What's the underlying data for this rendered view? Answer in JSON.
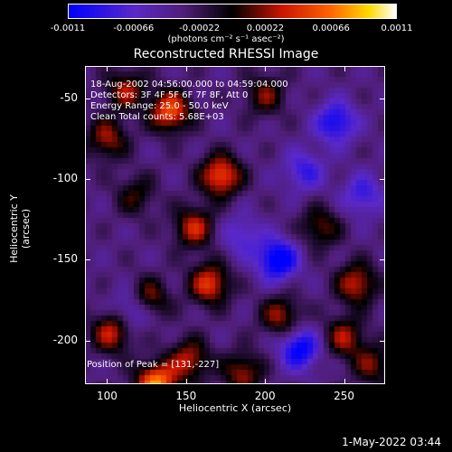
{
  "colorbar": {
    "ticks": [
      "-0.0011",
      "-0.00066",
      "-0.00022",
      "0.00022",
      "0.00066",
      "0.0011"
    ],
    "tick_values": [
      -0.0011,
      -0.00066,
      -0.00022,
      0.00022,
      0.00066,
      0.0011
    ],
    "units": "(photons cm⁻² s⁻¹ asec⁻²)",
    "range": [
      -0.0011,
      0.0011
    ]
  },
  "timestamp": "1-May-2022 03:44",
  "chart_data": {
    "type": "heatmap",
    "title": "Reconstructed RHESSI Image",
    "xlabel": "Heliocentric X (arcsec)",
    "ylabel": "Heliocentric Y (arcsec)",
    "xlim": [
      86,
      276
    ],
    "ylim": [
      -227,
      -30
    ],
    "xticks": [
      "100",
      "150",
      "200",
      "250"
    ],
    "xtick_values": [
      100,
      150,
      200,
      250
    ],
    "yticks": [
      "-50",
      "-100",
      "-150",
      "-200"
    ],
    "ytick_values": [
      -50,
      -100,
      -150,
      -200
    ],
    "annotations": [
      "18-Aug-2002 04:56:00.000 to 04:59:04.000",
      "Detectors: 3F 4F 5F 6F 7F 8F, Att 0",
      "Energy Range: 25.0 - 50.0 keV",
      "Clean     Total counts: 5.68E+03"
    ],
    "peak_label": "Position of Peak = [131,-227]",
    "peak": {
      "x": 131,
      "y": -227
    },
    "sources": [
      {
        "x": 131,
        "y": -227,
        "value": 0.0011
      },
      {
        "x": 152,
        "y": -212,
        "value": 0.00066
      },
      {
        "x": 103,
        "y": -195,
        "value": 0.0007
      },
      {
        "x": 125,
        "y": -175,
        "value": 0.0008
      },
      {
        "x": 165,
        "y": -165,
        "value": 0.0008
      },
      {
        "x": 155,
        "y": -130,
        "value": 0.0007
      },
      {
        "x": 172,
        "y": -98,
        "value": 0.0009
      },
      {
        "x": 140,
        "y": -58,
        "value": 0.0009
      },
      {
        "x": 100,
        "y": -75,
        "value": 0.0006
      },
      {
        "x": 112,
        "y": -45,
        "value": 0.0006
      },
      {
        "x": 200,
        "y": -48,
        "value": 0.0005
      },
      {
        "x": 210,
        "y": -185,
        "value": 0.0006
      },
      {
        "x": 258,
        "y": -165,
        "value": 0.0007
      },
      {
        "x": 250,
        "y": -198,
        "value": 0.0006
      },
      {
        "x": 235,
        "y": -130,
        "value": 0.0005
      },
      {
        "x": 268,
        "y": -215,
        "value": 0.0005
      },
      {
        "x": 186,
        "y": -220,
        "value": 0.0006
      },
      {
        "x": 118,
        "y": -110,
        "value": 0.0004
      },
      {
        "x": 208,
        "y": -150,
        "value": -0.0009
      },
      {
        "x": 245,
        "y": -65,
        "value": -0.0007
      },
      {
        "x": 222,
        "y": -205,
        "value": -0.0008
      },
      {
        "x": 118,
        "y": -180,
        "value": -0.0007
      },
      {
        "x": 262,
        "y": -110,
        "value": -0.0005
      },
      {
        "x": 225,
        "y": -95,
        "value": -0.0005
      },
      {
        "x": 185,
        "y": -135,
        "value": -0.0004
      }
    ]
  }
}
